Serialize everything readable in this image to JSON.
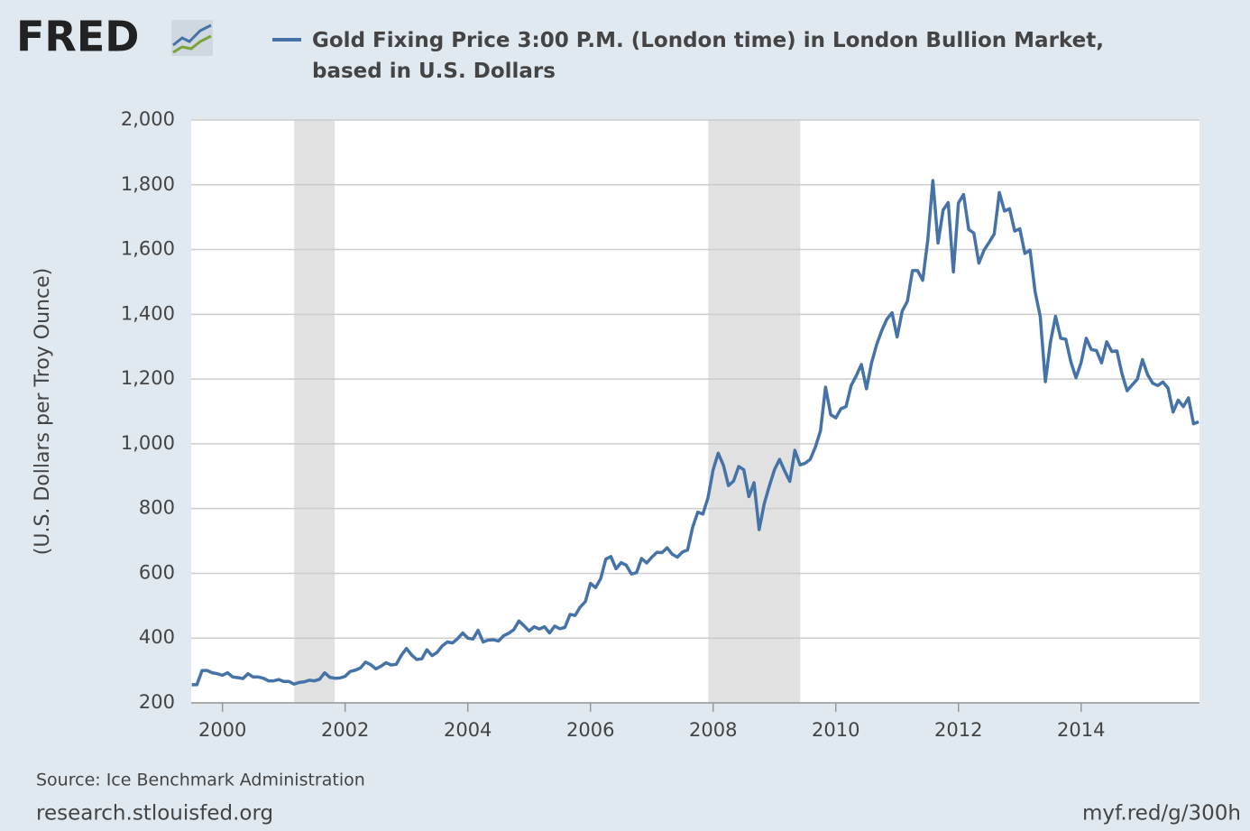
{
  "logo": "FRED",
  "source": "Source: Ice Benchmark Administration",
  "site": "research.stlouisfed.org",
  "short_url": "myf.red/g/300h",
  "chart_data": {
    "type": "line",
    "ylabel": "(U.S. Dollars per Troy Ounce)",
    "grid": true,
    "xlim": [
      1999.49,
      2015.93
    ],
    "ylim": [
      200,
      2000
    ],
    "xticks": [
      2000,
      2002,
      2004,
      2006,
      2008,
      2010,
      2012,
      2014
    ],
    "yticks": [
      200,
      400,
      600,
      800,
      {
        "value": 1000,
        "label": "1,000"
      },
      {
        "value": 1200,
        "label": "1,200"
      },
      {
        "value": 1400,
        "label": "1,400"
      },
      {
        "value": 1600,
        "label": "1,600"
      },
      {
        "value": 1800,
        "label": "1,800"
      },
      {
        "value": 2000,
        "label": "2,000"
      }
    ],
    "recessions": [
      [
        2001.17,
        2001.83
      ],
      [
        2007.92,
        2009.42
      ]
    ],
    "recession_color": "#e1e1e1",
    "x": [
      1999.5,
      1999.583,
      1999.667,
      1999.75,
      1999.833,
      1999.917,
      2000,
      2000.083,
      2000.167,
      2000.25,
      2000.333,
      2000.417,
      2000.5,
      2000.583,
      2000.667,
      2000.75,
      2000.833,
      2000.917,
      2001,
      2001.083,
      2001.167,
      2001.25,
      2001.333,
      2001.417,
      2001.5,
      2001.583,
      2001.667,
      2001.75,
      2001.833,
      2001.917,
      2002,
      2002.083,
      2002.167,
      2002.25,
      2002.333,
      2002.417,
      2002.5,
      2002.583,
      2002.667,
      2002.75,
      2002.833,
      2002.917,
      2003,
      2003.083,
      2003.167,
      2003.25,
      2003.333,
      2003.417,
      2003.5,
      2003.583,
      2003.667,
      2003.75,
      2003.833,
      2003.917,
      2004,
      2004.083,
      2004.167,
      2004.25,
      2004.333,
      2004.417,
      2004.5,
      2004.583,
      2004.667,
      2004.75,
      2004.833,
      2004.917,
      2005,
      2005.083,
      2005.167,
      2005.25,
      2005.333,
      2005.417,
      2005.5,
      2005.583,
      2005.667,
      2005.75,
      2005.833,
      2005.917,
      2006,
      2006.083,
      2006.167,
      2006.25,
      2006.333,
      2006.417,
      2006.5,
      2006.583,
      2006.667,
      2006.75,
      2006.833,
      2006.917,
      2007,
      2007.083,
      2007.167,
      2007.25,
      2007.333,
      2007.417,
      2007.5,
      2007.583,
      2007.667,
      2007.75,
      2007.833,
      2007.917,
      2008,
      2008.083,
      2008.167,
      2008.25,
      2008.333,
      2008.417,
      2008.5,
      2008.583,
      2008.667,
      2008.75,
      2008.833,
      2008.917,
      2009,
      2009.083,
      2009.167,
      2009.25,
      2009.333,
      2009.417,
      2009.5,
      2009.583,
      2009.667,
      2009.75,
      2009.833,
      2009.917,
      2010,
      2010.083,
      2010.167,
      2010.25,
      2010.333,
      2010.417,
      2010.5,
      2010.583,
      2010.667,
      2010.75,
      2010.833,
      2010.917,
      2011,
      2011.083,
      2011.167,
      2011.25,
      2011.333,
      2011.417,
      2011.5,
      2011.583,
      2011.667,
      2011.75,
      2011.833,
      2011.917,
      2012,
      2012.083,
      2012.167,
      2012.25,
      2012.333,
      2012.417,
      2012.5,
      2012.583,
      2012.667,
      2012.75,
      2012.833,
      2012.917,
      2013,
      2013.083,
      2013.167,
      2013.25,
      2013.333,
      2013.417,
      2013.5,
      2013.583,
      2013.667,
      2013.75,
      2013.833,
      2013.917,
      2014,
      2014.083,
      2014.167,
      2014.25,
      2014.333,
      2014.417,
      2014.5,
      2014.583,
      2014.667,
      2014.75,
      2014.833,
      2014.917,
      2015,
      2015.083,
      2015.167,
      2015.25,
      2015.333,
      2015.417,
      2015.5,
      2015.583,
      2015.667,
      2015.75,
      2015.833,
      2015.917
    ],
    "series": [
      {
        "name": "Gold Fixing Price 3:00 P.M. (London time) in London Bullion Market, based in U.S. Dollars",
        "color": "#4572a7",
        "values": [
          256,
          256,
          300,
          300,
          293,
          290,
          285,
          293,
          280,
          278,
          275,
          290,
          280,
          280,
          276,
          268,
          268,
          272,
          266,
          266,
          258,
          263,
          265,
          270,
          268,
          273,
          293,
          279,
          276,
          277,
          282,
          297,
          301,
          308,
          326,
          318,
          305,
          313,
          324,
          317,
          319,
          347,
          368,
          348,
          334,
          336,
          364,
          346,
          356,
          376,
          388,
          385,
          398,
          416,
          400,
          397,
          424,
          388,
          394,
          395,
          391,
          407,
          415,
          426,
          453,
          438,
          422,
          435,
          428,
          435,
          416,
          437,
          429,
          433,
          473,
          470,
          496,
          513,
          569,
          556,
          584,
          644,
          652,
          614,
          633,
          625,
          598,
          602,
          646,
          632,
          650,
          665,
          664,
          679,
          659,
          650,
          666,
          672,
          743,
          789,
          783,
          834,
          920,
          971,
          934,
          871,
          885,
          930,
          920,
          837,
          880,
          735,
          815,
          870,
          920,
          952,
          916,
          884,
          980,
          935,
          940,
          952,
          990,
          1040,
          1175,
          1090,
          1080,
          1108,
          1115,
          1180,
          1210,
          1245,
          1170,
          1250,
          1307,
          1350,
          1385,
          1405,
          1330,
          1410,
          1440,
          1535,
          1535,
          1505,
          1630,
          1813,
          1620,
          1722,
          1745,
          1531,
          1744,
          1770,
          1662,
          1651,
          1558,
          1598,
          1622,
          1648,
          1776,
          1719,
          1726,
          1657,
          1664,
          1588,
          1598,
          1469,
          1394,
          1192,
          1314,
          1394,
          1326,
          1323,
          1253,
          1204,
          1251,
          1326,
          1291,
          1288,
          1250,
          1315,
          1285,
          1287,
          1216,
          1164,
          1182,
          1200,
          1260,
          1214,
          1187,
          1180,
          1191,
          1172,
          1098,
          1135,
          1115,
          1142,
          1062,
          1068
        ]
      }
    ]
  }
}
